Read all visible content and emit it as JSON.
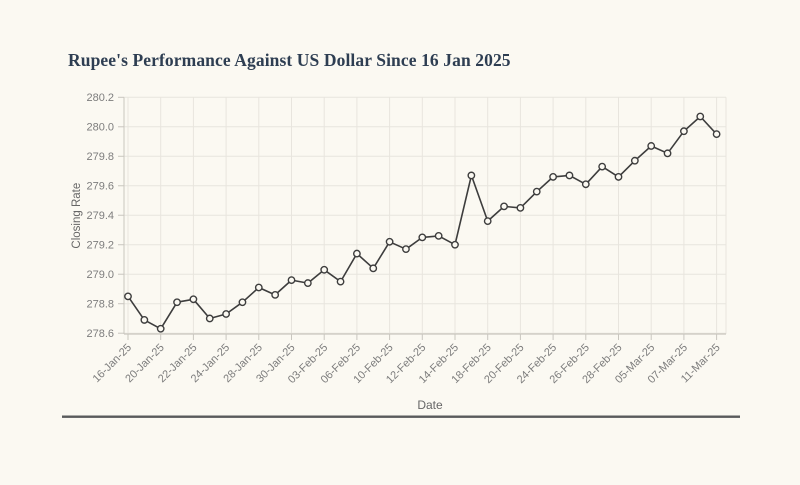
{
  "title": {
    "text": "Rupee's Performance Against US Dollar Since 16 Jan 2025",
    "color": "#2e3e52"
  },
  "chart_data": {
    "type": "line",
    "title": "Rupee's Performance Against US Dollar Since 16 Jan 2025",
    "xlabel": "Date",
    "ylabel": "Closing Rate",
    "ylim": [
      278.6,
      280.2
    ],
    "yticks": [
      278.6,
      278.8,
      279.0,
      279.2,
      279.4,
      279.6,
      279.8,
      280.0,
      280.2
    ],
    "x_tick_labels": [
      "16-Jan-25",
      "20-Jan-25",
      "22-Jan-25",
      "24-Jan-25",
      "28-Jan-25",
      "30-Jan-25",
      "03-Feb-25",
      "06-Feb-25",
      "10-Feb-25",
      "12-Feb-25",
      "14-Feb-25",
      "18-Feb-25",
      "20-Feb-25",
      "24-Feb-25",
      "26-Feb-25",
      "28-Feb-25",
      "05-Mar-25",
      "07-Mar-25",
      "11-Mar-25"
    ],
    "tick_every": 2,
    "values": [
      278.85,
      278.69,
      278.63,
      278.81,
      278.83,
      278.7,
      278.73,
      278.81,
      278.91,
      278.86,
      278.96,
      278.94,
      279.03,
      278.95,
      279.14,
      279.04,
      279.22,
      279.17,
      279.25,
      279.26,
      279.2,
      279.67,
      279.36,
      279.46,
      279.45,
      279.56,
      279.66,
      279.67,
      279.61,
      279.73,
      279.66,
      279.77,
      279.87,
      279.82,
      279.97,
      280.07,
      279.95
    ],
    "grid": true,
    "legend": "none",
    "marker": "open-circle",
    "colors": {
      "line": "#3d3d3d",
      "marker_fill": "#fbf9f2",
      "gridline": "#e8e5de",
      "axis_line": "#c9c6bf",
      "tick_label": "#7d7d7d",
      "axis_title": "#666666",
      "background": "#fbf9f2"
    }
  },
  "footer": {
    "rule_color": "#595b5c"
  }
}
